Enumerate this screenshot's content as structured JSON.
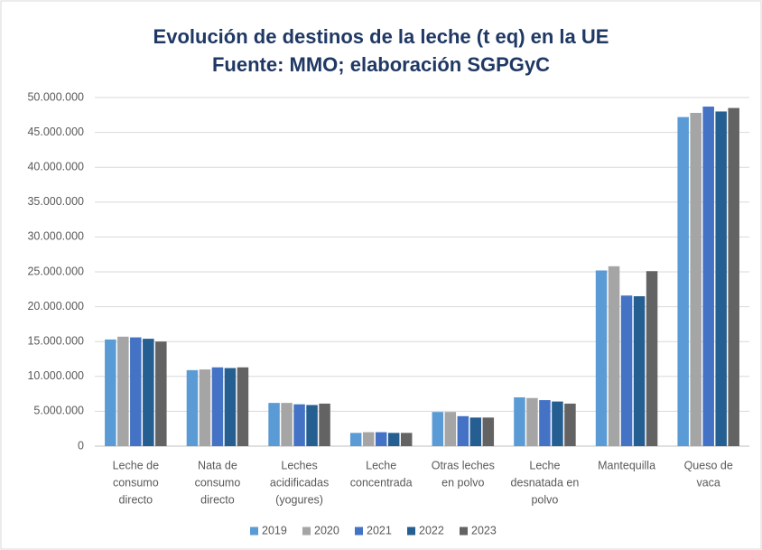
{
  "chart_data": {
    "type": "bar",
    "title": [
      "Evolución de destinos de la leche (t eq) en la UE",
      "Fuente: MMO; elaboración SGPGyC"
    ],
    "categories": [
      [
        "Leche de",
        "consumo",
        "directo"
      ],
      [
        "Nata de",
        "consumo",
        "directo"
      ],
      [
        "Leches",
        "acidificadas",
        "(yogures)"
      ],
      [
        "Leche",
        "concentrada"
      ],
      [
        "Otras leches",
        "en polvo"
      ],
      [
        "Leche",
        "desnatada en",
        "polvo"
      ],
      [
        "Mantequilla"
      ],
      [
        "Queso de",
        "vaca"
      ]
    ],
    "series": [
      {
        "name": "2019",
        "color": "#5b9bd5",
        "values": [
          15300000,
          10900000,
          6200000,
          1900000,
          4900000,
          7000000,
          25200000,
          47200000
        ]
      },
      {
        "name": "2020",
        "color": "#a5a5a5",
        "values": [
          15700000,
          11000000,
          6200000,
          2000000,
          4900000,
          6900000,
          25800000,
          47800000
        ]
      },
      {
        "name": "2021",
        "color": "#4472c4",
        "values": [
          15600000,
          11300000,
          6000000,
          2000000,
          4300000,
          6600000,
          21600000,
          48700000
        ]
      },
      {
        "name": "2022",
        "color": "#255e91",
        "values": [
          15400000,
          11200000,
          5900000,
          1900000,
          4100000,
          6400000,
          21500000,
          48000000
        ]
      },
      {
        "name": "2023",
        "color": "#636363",
        "values": [
          15000000,
          11300000,
          6100000,
          1900000,
          4100000,
          6100000,
          25100000,
          48500000
        ]
      }
    ],
    "ylim": [
      0,
      50000000
    ],
    "yticks": [
      0,
      {
        "value": 5000000,
        "label": "5.000.000"
      },
      {
        "value": 10000000,
        "label": "10.000.000"
      },
      {
        "value": 15000000,
        "label": "15.000.000"
      },
      {
        "value": 20000000,
        "label": "20.000.000"
      },
      {
        "value": 25000000,
        "label": "25.000.000"
      },
      {
        "value": 30000000,
        "label": "30.000.000"
      },
      {
        "value": 35000000,
        "label": "35.000.000"
      },
      {
        "value": 40000000,
        "label": "40.000.000"
      },
      {
        "value": 45000000,
        "label": "45.000.000"
      },
      {
        "value": 50000000,
        "label": "50.000.000"
      }
    ],
    "grid": true,
    "legend": "bottom"
  }
}
